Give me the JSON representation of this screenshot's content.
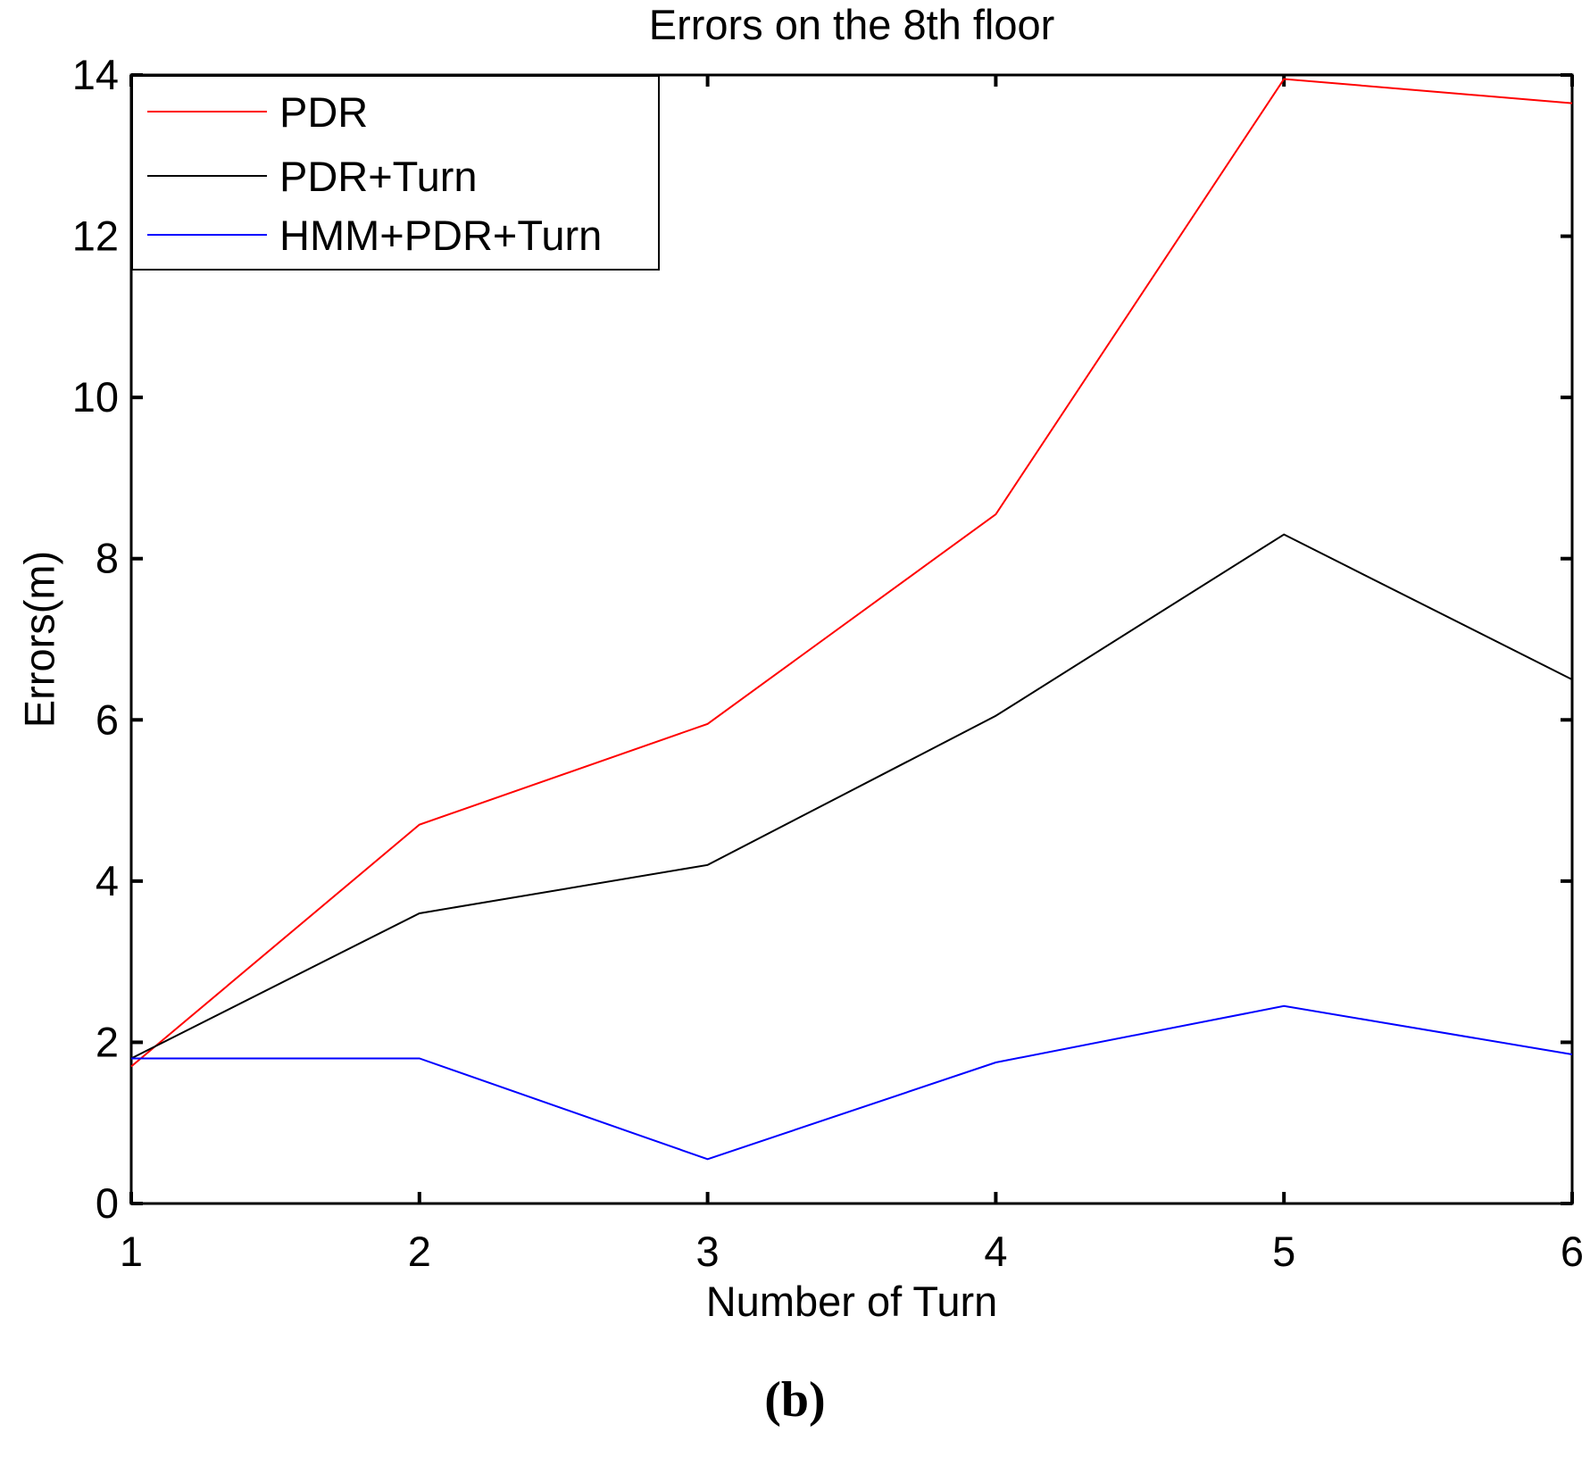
{
  "figure": {
    "caption": "(b)"
  },
  "chart_data": {
    "type": "line",
    "title": "Errors on the 8th floor",
    "xlabel": "Number of Turn",
    "ylabel": "Errors(m)",
    "xlim": [
      1,
      6
    ],
    "ylim": [
      0,
      14
    ],
    "xticks": [
      1,
      2,
      3,
      4,
      5,
      6
    ],
    "yticks": [
      0,
      2,
      4,
      6,
      8,
      10,
      12,
      14
    ],
    "grid": false,
    "legend_position": "top-left-inside",
    "background": "#ffffff",
    "axis_color": "#000000",
    "x": [
      1,
      2,
      3,
      4,
      5,
      6
    ],
    "series": [
      {
        "name": "PDR",
        "color": "#ff0000",
        "values": [
          1.7,
          4.7,
          5.95,
          8.55,
          13.95,
          13.65
        ]
      },
      {
        "name": "PDR+Turn",
        "color": "#000000",
        "values": [
          1.8,
          3.6,
          4.2,
          6.05,
          8.3,
          6.5
        ]
      },
      {
        "name": "HMM+PDR+Turn",
        "color": "#0000ff",
        "values": [
          1.8,
          1.8,
          0.55,
          1.75,
          2.45,
          1.85
        ]
      }
    ]
  }
}
